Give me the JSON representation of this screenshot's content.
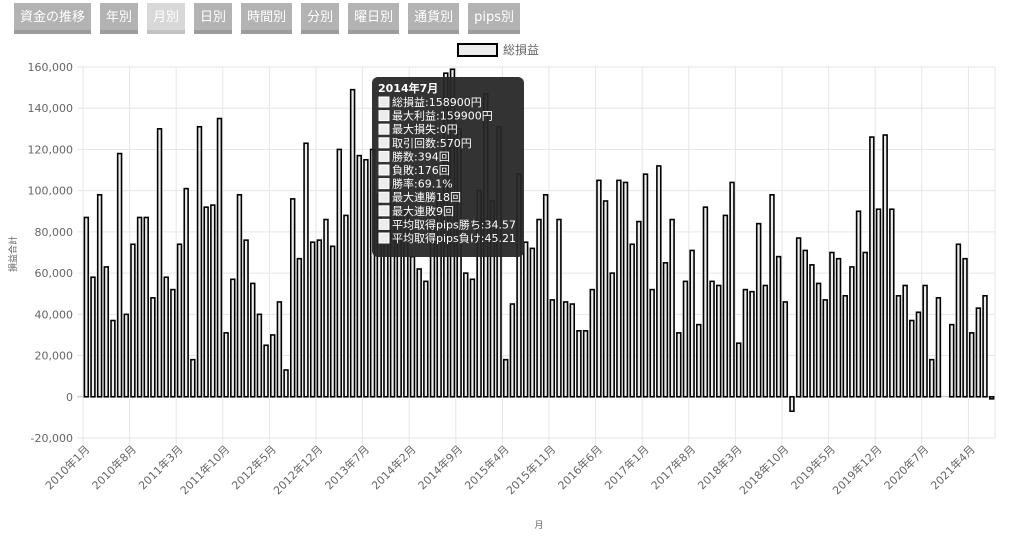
{
  "tabs": [
    {
      "label": "資金の推移",
      "active": false
    },
    {
      "label": "年別",
      "active": false
    },
    {
      "label": "月別",
      "active": true
    },
    {
      "label": "日別",
      "active": false
    },
    {
      "label": "時間別",
      "active": false
    },
    {
      "label": "分別",
      "active": false
    },
    {
      "label": "曜日別",
      "active": false
    },
    {
      "label": "通貨別",
      "active": false
    },
    {
      "label": "pips別",
      "active": false
    }
  ],
  "colors": {
    "bar_fill": "#ececec",
    "bar_stroke": "#000000",
    "tooltip_bg": "#262626"
  },
  "tooltip": {
    "title": "2014年7月",
    "lines": [
      "総損益:158900円",
      "最大利益:159900円",
      "最大損失:0円",
      "取引回数:570円",
      "勝数:394回",
      "負敗:176回",
      "勝率:69.1%",
      "最大連勝18回",
      "最大連敗9回",
      "平均取得pips勝ち:34.57",
      "平均取得pips負け:45.21"
    ]
  },
  "chart_data": {
    "type": "bar",
    "xlabel": "月",
    "ylabel": "損益合計",
    "ylim": [
      -20000,
      160000
    ],
    "yticks": [
      -20000,
      0,
      20000,
      40000,
      60000,
      80000,
      100000,
      120000,
      140000,
      160000
    ],
    "ytick_labels": [
      "-20,000",
      "0",
      "20,000",
      "40,000",
      "60,000",
      "80,000",
      "100,000",
      "120,000",
      "140,000",
      "160,000"
    ],
    "xtick_labels": [
      "2010年1月",
      "2010年8月",
      "2011年3月",
      "2011年10月",
      "2012年5月",
      "2012年12月",
      "2013年7月",
      "2014年2月",
      "2014年9月",
      "2015年4月",
      "2015年11月",
      "2016年6月",
      "2017年1月",
      "2017年8月",
      "2018年3月",
      "2018年10月",
      "2019年5月",
      "2019年12月",
      "2020年7月",
      "2021年4月"
    ],
    "legend": "top-center",
    "grid": true,
    "series": [
      {
        "name": "総損益",
        "values": [
          87000,
          58000,
          98000,
          63000,
          37000,
          118000,
          40000,
          74000,
          87000,
          87000,
          48000,
          130000,
          58000,
          52000,
          74000,
          101000,
          18000,
          131000,
          92000,
          93000,
          135000,
          31000,
          57000,
          98000,
          76000,
          55000,
          40000,
          25000,
          30000,
          46000,
          13000,
          96000,
          67000,
          123000,
          75000,
          76000,
          86000,
          73000,
          120000,
          88000,
          149000,
          117000,
          115000,
          120000,
          98000,
          80000,
          102000,
          90000,
          90000,
          68000,
          62000,
          56000,
          88000,
          98000,
          157000,
          158900,
          130000,
          60000,
          57000,
          100000,
          147000,
          95000,
          131000,
          18000,
          45000,
          108000,
          75000,
          72000,
          86000,
          98000,
          47000,
          86000,
          46000,
          45000,
          32000,
          32000,
          52000,
          105000,
          95000,
          60000,
          105000,
          104000,
          74000,
          85000,
          108000,
          52000,
          112000,
          65000,
          86000,
          31000,
          56000,
          71000,
          35000,
          92000,
          56000,
          54000,
          88000,
          104000,
          26000,
          52000,
          51000,
          84000,
          54000,
          98000,
          68000,
          46000,
          -7000,
          77000,
          71000,
          64000,
          55000,
          47000,
          70000,
          67000,
          49000,
          63000,
          90000,
          70000,
          126000,
          91000,
          127000,
          91000,
          49000,
          54000,
          37000,
          41000,
          54000,
          18000,
          48000,
          0,
          35000,
          74000,
          67000,
          31000,
          43000,
          49000,
          -1000
        ]
      }
    ]
  }
}
